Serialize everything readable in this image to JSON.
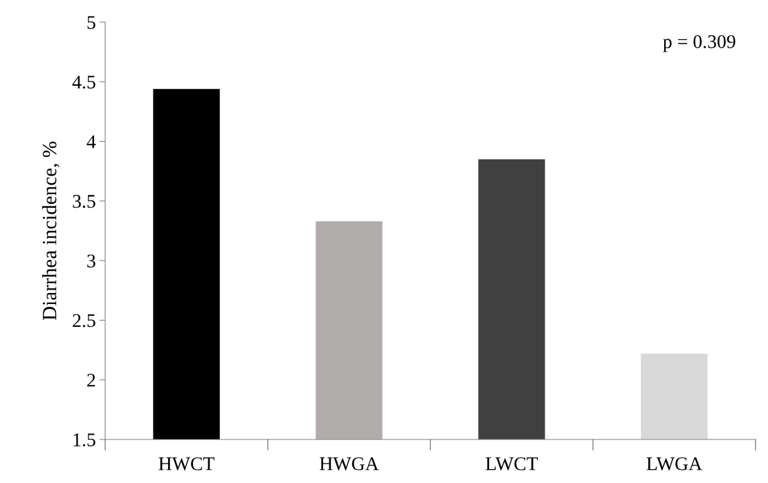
{
  "chart_data": {
    "type": "bar",
    "ylabel": "Diarrhea incidence, %",
    "categories": [
      "HWCT",
      "HWGA",
      "LWCT",
      "LWGA"
    ],
    "values": [
      4.44,
      3.33,
      3.85,
      2.22
    ],
    "colors": [
      "#000000",
      "#b0acab",
      "#404040",
      "#d9d9d9"
    ],
    "ylim": [
      1.5,
      5
    ],
    "yticks": [
      1.5,
      2,
      2.5,
      3,
      3.5,
      4,
      4.5,
      5
    ],
    "grid": false,
    "legend": false,
    "annotations": [
      "p = 0.309"
    ]
  }
}
